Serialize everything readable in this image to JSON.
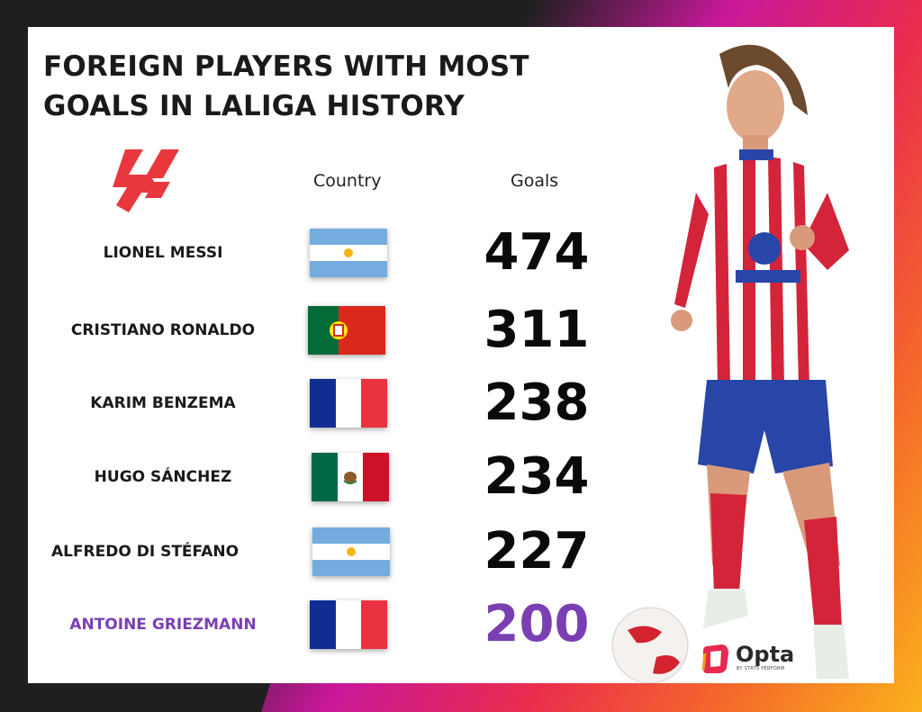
{
  "title": "FOREIGN PLAYERS WITH MOST GOALS IN LALIGA HISTORY",
  "headers": {
    "country": "Country",
    "goals": "Goals"
  },
  "players": [
    {
      "name": "LIONEL MESSI",
      "country": "Argentina",
      "goals": "474",
      "highlight": false
    },
    {
      "name": "CRISTIANO RONALDO",
      "country": "Portugal",
      "goals": "311",
      "highlight": false
    },
    {
      "name": "KARIM BENZEMA",
      "country": "France",
      "goals": "238",
      "highlight": false
    },
    {
      "name": "HUGO SÁNCHEZ",
      "country": "Mexico",
      "goals": "234",
      "highlight": false
    },
    {
      "name": "ALFREDO DI STÉFANO",
      "country": "Argentina",
      "goals": "227",
      "highlight": false
    },
    {
      "name": "ANTOINE GRIEZMANN",
      "country": "France",
      "goals": "200",
      "highlight": true
    }
  ],
  "branding": {
    "laliga_logo": "laliga-logo",
    "opta_logo": "Opta",
    "opta_sub": "BY STATS PERFORM"
  },
  "colors": {
    "highlight": "#7a3fb2",
    "laliga_red": "#e8383d",
    "jersey_red": "#d3243a",
    "shorts_blue": "#2846a8"
  }
}
